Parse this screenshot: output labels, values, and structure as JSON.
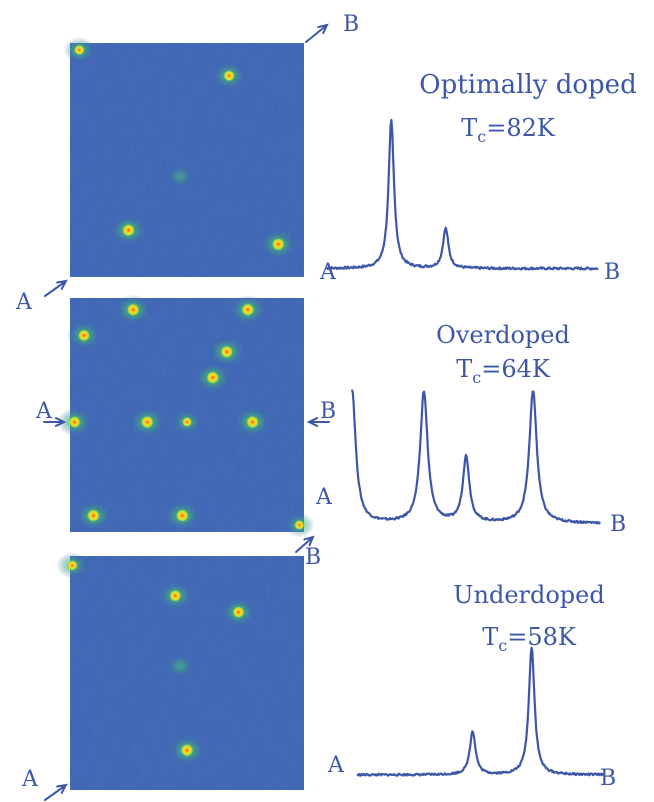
{
  "colors": {
    "ink": "#3d57a8",
    "map_bg": "#3e65b4",
    "map_bg_dark": "#3659ab",
    "spot_core": "#e8ee2a",
    "spot_center": "#ff5a1e",
    "spot_halo": "#3fb07a"
  },
  "panels": [
    {
      "title_line1": "Optimally doped",
      "title_line2_prefix": "T",
      "title_line2_sub": "c",
      "title_line2_value": "=82K",
      "endpoint_a": "A",
      "endpoint_b": "B",
      "map_marker_a": "A",
      "map_marker_b": "B",
      "profile": {
        "baseline": 0.03,
        "peaks": [
          {
            "position": 0.24,
            "height": 1.0,
            "width": 0.012
          },
          {
            "position": 0.44,
            "height": 0.27,
            "width": 0.012
          }
        ]
      },
      "spots": [
        {
          "u": 0.04,
          "v": 0.03,
          "strength": 0.7
        },
        {
          "u": 0.68,
          "v": 0.14,
          "strength": 0.8
        },
        {
          "u": 0.47,
          "v": 0.57,
          "strength": 0.3
        },
        {
          "u": 0.25,
          "v": 0.8,
          "strength": 1.0
        },
        {
          "u": 0.89,
          "v": 0.86,
          "strength": 1.0
        }
      ]
    },
    {
      "title_line1": "Overdoped",
      "title_line2_prefix": "T",
      "title_line2_sub": "c",
      "title_line2_value": "=64K",
      "endpoint_a": "A",
      "endpoint_b": "B",
      "map_marker_a": "A",
      "map_marker_b": "B",
      "profile": {
        "baseline": 0.05,
        "peaks": [
          {
            "position": 0.0,
            "height": 1.0,
            "width": 0.018
          },
          {
            "position": 0.29,
            "height": 0.98,
            "width": 0.018
          },
          {
            "position": 0.46,
            "height": 0.49,
            "width": 0.016
          },
          {
            "position": 0.73,
            "height": 0.99,
            "width": 0.018
          }
        ]
      },
      "spots": [
        {
          "u": 0.27,
          "v": 0.05,
          "strength": 1.0
        },
        {
          "u": 0.76,
          "v": 0.05,
          "strength": 1.0
        },
        {
          "u": 0.06,
          "v": 0.16,
          "strength": 0.9
        },
        {
          "u": 0.67,
          "v": 0.23,
          "strength": 1.0
        },
        {
          "u": 0.61,
          "v": 0.34,
          "strength": 1.0
        },
        {
          "u": 0.02,
          "v": 0.53,
          "strength": 0.9
        },
        {
          "u": 0.33,
          "v": 0.53,
          "strength": 1.0
        },
        {
          "u": 0.5,
          "v": 0.53,
          "strength": 0.6
        },
        {
          "u": 0.78,
          "v": 0.53,
          "strength": 1.0
        },
        {
          "u": 0.1,
          "v": 0.93,
          "strength": 1.0
        },
        {
          "u": 0.48,
          "v": 0.93,
          "strength": 1.0
        },
        {
          "u": 0.98,
          "v": 0.97,
          "strength": 0.6
        }
      ]
    },
    {
      "title_line1": "Underdoped",
      "title_line2_prefix": "T",
      "title_line2_sub": "c",
      "title_line2_value": "=58K",
      "endpoint_a": "A",
      "endpoint_b": "B",
      "map_marker_a": "A",
      "map_marker_b": "B",
      "profile": {
        "baseline": 0.04,
        "peaks": [
          {
            "position": 0.47,
            "height": 0.34,
            "width": 0.014
          },
          {
            "position": 0.71,
            "height": 1.0,
            "width": 0.014
          }
        ]
      },
      "spots": [
        {
          "u": 0.01,
          "v": 0.04,
          "strength": 0.7
        },
        {
          "u": 0.45,
          "v": 0.17,
          "strength": 0.9
        },
        {
          "u": 0.72,
          "v": 0.24,
          "strength": 0.9
        },
        {
          "u": 0.47,
          "v": 0.47,
          "strength": 0.35
        },
        {
          "u": 0.5,
          "v": 0.83,
          "strength": 1.0
        }
      ]
    }
  ]
}
